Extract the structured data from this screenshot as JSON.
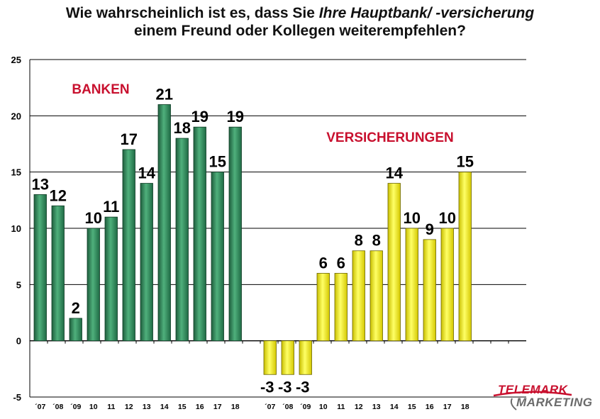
{
  "title": {
    "line1_prefix": "Wie wahrscheinlich ist es, dass Sie ",
    "line1_italic": "Ihre Hauptbank/ -versicherung",
    "line2": "einem Freund oder Kollegen weiterempfehlen?"
  },
  "chart_data": {
    "type": "bar",
    "ylim": [
      -5,
      25
    ],
    "yticks": [
      "-5",
      "0",
      "5",
      "10",
      "15",
      "20",
      "25"
    ],
    "grid": true,
    "annotations": [
      "BANKEN",
      "VERSICHERUNGEN"
    ],
    "series": [
      {
        "name": "BANKEN",
        "categories": [
          "´07",
          "´08",
          "´09",
          "10",
          "11",
          "12",
          "13",
          "14",
          "15",
          "16",
          "17",
          "18"
        ],
        "values": [
          13,
          12,
          2,
          10,
          11,
          17,
          14,
          21,
          18,
          19,
          15,
          19
        ],
        "labels": [
          "13",
          "12",
          "2",
          "10",
          "11",
          "17",
          "14",
          "21",
          "18",
          "19",
          "15",
          "19"
        ],
        "color": "#2e8b5a"
      },
      {
        "name": "VERSICHERUNGEN",
        "categories": [
          "´07",
          "´08",
          "´09",
          "10",
          "11",
          "12",
          "13",
          "14",
          "15",
          "16",
          "17",
          "18"
        ],
        "values": [
          -3,
          -3,
          -3,
          6,
          6,
          8,
          8,
          14,
          10,
          9,
          10,
          15
        ],
        "labels": [
          "-3",
          "-3",
          "-3",
          "6",
          "6",
          "8",
          "8",
          "14",
          "10",
          "9",
          "10",
          "15"
        ],
        "color": "#f0e600"
      }
    ],
    "annotation_color": "#c8102e"
  },
  "logo": {
    "line1": "TELEMARK",
    "line2": "MARKETING"
  }
}
